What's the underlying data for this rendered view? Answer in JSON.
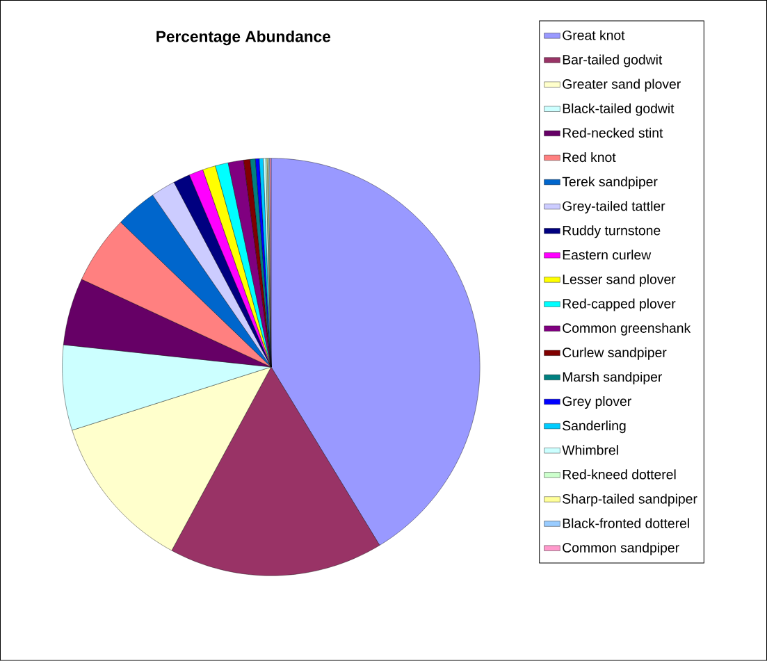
{
  "chart_data": {
    "type": "pie",
    "title": "Percentage Abundance",
    "legend": "right",
    "categories": [
      "Great knot",
      "Bar-tailed godwit",
      "Greater sand plover",
      "Black-tailed godwit",
      "Red-necked stint",
      "Red knot",
      "Terek sandpiper",
      "Grey-tailed tattler",
      "Ruddy turnstone",
      "Eastern curlew",
      "Lesser sand plover",
      "Red-capped plover",
      "Common greenshank",
      "Curlew sandpiper",
      "Marsh sandpiper",
      "Grey plover",
      "Sanderling",
      "Whimbrel",
      "Red-kneed dotterel",
      "Sharp-tailed sandpiper",
      "Black-fronted dotterel",
      "Common sandpiper"
    ],
    "values": [
      41.3,
      16.6,
      12.2,
      6.6,
      5.2,
      5.3,
      3.2,
      1.9,
      1.3,
      1.1,
      1.0,
      1.0,
      1.2,
      0.5,
      0.4,
      0.3,
      0.3,
      0.2,
      0.1,
      0.1,
      0.1,
      0.1
    ],
    "colors": [
      "#9999ff",
      "#993366",
      "#ffffcc",
      "#ccffff",
      "#660066",
      "#ff8080",
      "#0066cc",
      "#ccccff",
      "#000080",
      "#ff00ff",
      "#ffff00",
      "#00ffff",
      "#800080",
      "#800000",
      "#008080",
      "#0000ff",
      "#00ccff",
      "#ccffff",
      "#ccffcc",
      "#ffff99",
      "#99ccff",
      "#ff99cc"
    ]
  }
}
